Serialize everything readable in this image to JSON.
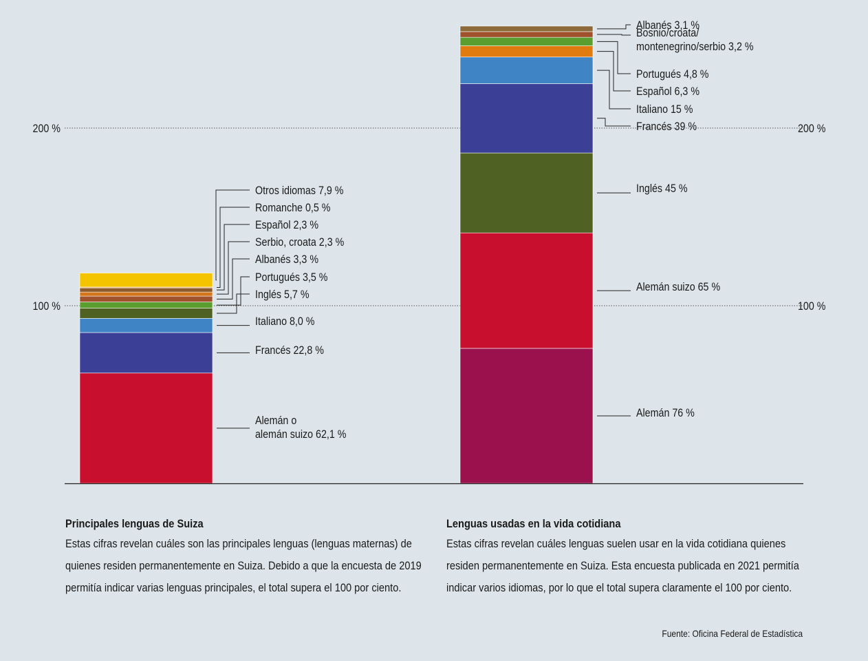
{
  "chart_data": {
    "type": "bar",
    "stacked": true,
    "y_ticks": [
      "100 %",
      "200 %"
    ],
    "ylim": [
      0,
      260
    ],
    "grid": "dotted lines at 100 % and 200 %",
    "bars": [
      {
        "id": "main",
        "segments": [
          {
            "name": "Alemán o alemán suizo",
            "label": [
              "Alemán o",
              "alemán suizo 62,1 %"
            ],
            "value": 62.1,
            "color": "#c8102e"
          },
          {
            "name": "Francés",
            "label": [
              "Francés 22,8 %"
            ],
            "value": 22.8,
            "color": "#3b3f96"
          },
          {
            "name": "Italiano",
            "label": [
              "Italiano 8,0 %"
            ],
            "value": 8.0,
            "color": "#3f84c4"
          },
          {
            "name": "Inglés",
            "label": [
              "Inglés 5,7 %"
            ],
            "value": 5.7,
            "color": "#4f6224"
          },
          {
            "name": "Portugués",
            "label": [
              "Portugués 3,5 %"
            ],
            "value": 3.5,
            "color": "#5a9e2f"
          },
          {
            "name": "Albanés",
            "label": [
              "Albanés 3,3 %"
            ],
            "value": 3.3,
            "color": "#a0522d"
          },
          {
            "name": "Serbio, croata",
            "label": [
              "Serbio, croata 2,3 %"
            ],
            "value": 2.3,
            "color": "#d4771c"
          },
          {
            "name": "Español",
            "label": [
              "Español 2,3 %"
            ],
            "value": 2.3,
            "color": "#8c5a2b"
          },
          {
            "name": "Romanche",
            "label": [
              "Romanche 0,5 %"
            ],
            "value": 0.5,
            "color": "#e5a050"
          },
          {
            "name": "Otros idiomas",
            "label": [
              "Otros idiomas 7,9 %"
            ],
            "value": 7.9,
            "color": "#f5c400"
          }
        ]
      },
      {
        "id": "daily",
        "segments": [
          {
            "name": "Alemán",
            "label": [
              "Alemán 76 %"
            ],
            "value": 76,
            "color": "#9b114e"
          },
          {
            "name": "Alemán suizo",
            "label": [
              "Alemán suizo 65 %"
            ],
            "value": 65,
            "color": "#c8102e"
          },
          {
            "name": "Inglés",
            "label": [
              "Inglés 45 %"
            ],
            "value": 45,
            "color": "#4f6224"
          },
          {
            "name": "Francés",
            "label": [
              "Francés 39 %"
            ],
            "value": 39,
            "color": "#3b3f96"
          },
          {
            "name": "Italiano",
            "label": [
              "Italiano 15 %"
            ],
            "value": 15,
            "color": "#3f84c4"
          },
          {
            "name": "Español",
            "label": [
              "Español 6,3 %"
            ],
            "value": 6.3,
            "color": "#e07b10"
          },
          {
            "name": "Portugués",
            "label": [
              "Portugués 4,8 %"
            ],
            "value": 4.8,
            "color": "#5a9e2f"
          },
          {
            "name": "Bosnio/croata/montenegrino/serbio",
            "label": [
              "Bosnio/croata/",
              "montenegrino/serbio 3,2 %"
            ],
            "value": 3.2,
            "color": "#a0522d"
          },
          {
            "name": "Albanés",
            "label": [
              "Albanés 3,1 %"
            ],
            "value": 3.1,
            "color": "#8c6a3a"
          }
        ]
      }
    ]
  },
  "captions": {
    "left": {
      "title": "Principales lenguas de Suiza",
      "body": "Estas cifras revelan cuáles son las principales lenguas (lenguas maternas) de quienes residen permanentemente en Suiza. Debido a que la encuesta de 2019 permitía indicar varias lenguas principales, el total supera el 100 por ciento."
    },
    "right": {
      "title": "Lenguas usadas en la vida cotidiana",
      "body": "Estas cifras revelan cuáles lenguas suelen usar en la vida cotidiana quienes residen permanentemente en Suiza. Esta encuesta publicada en 2021 permitía indicar varios idiomas, por lo que el total supera claramente el 100 por ciento."
    }
  },
  "source": "Fuente: Oficina Federal de Estadística"
}
